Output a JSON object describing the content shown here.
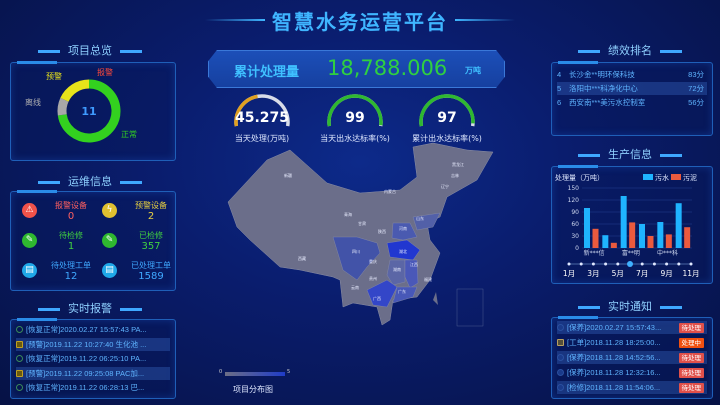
{
  "header": {
    "title": "智慧水务运营平台"
  },
  "overview": {
    "title": "项目总览",
    "total": "11",
    "segments": [
      {
        "label": "正常",
        "value": 8,
        "color": "#33d11f"
      },
      {
        "label": "离线",
        "value": 1,
        "color": "#a8a8a8"
      },
      {
        "label": "预警",
        "value": 2,
        "color": "#e8e41a"
      },
      {
        "label": "报警",
        "value": 0,
        "color": "#ff4a3a"
      }
    ]
  },
  "ops": {
    "title": "运维信息",
    "items": [
      {
        "label": "报警设备",
        "value": "0",
        "icon": "alarm-icon",
        "color": "#f0524a",
        "label_color": "#ff6060"
      },
      {
        "label": "预警设备",
        "value": "2",
        "icon": "warning-bolt-icon",
        "color": "#e0c030",
        "label_color": "#e8d040"
      },
      {
        "label": "待检修",
        "value": "1",
        "icon": "wrench-icon",
        "color": "#2fb82f",
        "label_color": "#40d040"
      },
      {
        "label": "已检修",
        "value": "357",
        "icon": "wrench-icon",
        "color": "#2fb82f",
        "label_color": "#40d040"
      },
      {
        "label": "待处理工单",
        "value": "12",
        "icon": "document-icon",
        "color": "#1fa8e8",
        "label_color": "#3fa8ff"
      },
      {
        "label": "已处理工单",
        "value": "1589",
        "icon": "document-icon",
        "color": "#1fa8e8",
        "label_color": "#3fa8ff"
      }
    ]
  },
  "alarms": {
    "title": "实时报警",
    "items": [
      {
        "text": "[恢复正常]2020.02.27 15:57:43 PA...",
        "type": "ok"
      },
      {
        "text": "[预警]2019.11.22 10:27:40 生化池 ...",
        "type": "warn"
      },
      {
        "text": "[恢复正常]2019.11.22 06:25:10 PA...",
        "type": "ok"
      },
      {
        "text": "[预警]2019.11.22 09:25:08 PAC加...",
        "type": "warn"
      },
      {
        "text": "[恢复正常]2019.11.22 06:28:13 巴...",
        "type": "ok"
      }
    ]
  },
  "summary": {
    "label": "累计处理量",
    "value": "18,788.006",
    "unit": "万吨"
  },
  "gauges": [
    {
      "value": "45.275",
      "fraction": 0.45,
      "label": "当天处理(万吨)",
      "color": "#e0a020"
    },
    {
      "value": "99",
      "fraction": 0.99,
      "label": "当天出水达标率(%)",
      "color": "#2fb830"
    },
    {
      "value": "97",
      "fraction": 0.97,
      "label": "累计出水达标率(%)",
      "color": "#2fb830"
    }
  ],
  "map": {
    "title": "项目分布图",
    "scale_min": "0",
    "scale_max": "5",
    "labels": [
      "新疆",
      "西藏",
      "青海",
      "甘肃",
      "内蒙古",
      "黑龙江",
      "吉林",
      "辽宁",
      "陕西",
      "河南",
      "山东",
      "四川",
      "重庆",
      "湖北",
      "湖南",
      "江西",
      "贵州",
      "云南",
      "广西",
      "广东",
      "福建"
    ]
  },
  "ranking": {
    "title": "绩效排名",
    "items": [
      {
        "rank": "4",
        "name": "长沙金**明环保科技",
        "score": "83分"
      },
      {
        "rank": "5",
        "name": "洛阳中***科净化中心",
        "score": "72分"
      },
      {
        "rank": "6",
        "name": "西安南***美污水控制室",
        "score": "56分"
      }
    ]
  },
  "production": {
    "title": "生产信息"
  },
  "chart_data": {
    "type": "bar",
    "ylabel": "处理量（万吨）",
    "ylim": [
      0,
      150
    ],
    "yticks": [
      "0",
      "30",
      "60",
      "90",
      "120",
      "150"
    ],
    "categories": [
      "新***信",
      "",
      "富**明",
      "",
      "中***科",
      ""
    ],
    "series": [
      {
        "name": "污水",
        "color": "#1fb4ff",
        "values": [
          100,
          32,
          130,
          60,
          65,
          112
        ]
      },
      {
        "name": "污泥",
        "color": "#ea5a3e",
        "values": [
          48,
          13,
          64,
          30,
          34,
          52
        ]
      }
    ],
    "timeline": {
      "labels": [
        "1月",
        "3月",
        "5月",
        "7月",
        "9月",
        "11月"
      ],
      "active": "6月"
    }
  },
  "notices": {
    "title": "实时通知",
    "items": [
      {
        "text": "[保养]2020.02.27 15:57:43...",
        "status": "待处理",
        "icon": "maintenance-icon"
      },
      {
        "text": "[工单]2018.11.28 18:25:00...",
        "status": "处理中",
        "icon": "document-icon"
      },
      {
        "text": "[保养]2018.11.28 14:52:56...",
        "status": "待处理",
        "icon": "maintenance-icon"
      },
      {
        "text": "[保养]2018.11.28 12:32:16...",
        "status": "待处理",
        "icon": "maintenance-icon"
      },
      {
        "text": "[检修]2018.11.28 11:54:06...",
        "status": "待处理",
        "icon": "repair-icon"
      }
    ],
    "status_colors": {
      "待处理": "#e0504a",
      "处理中": "#f05010"
    }
  }
}
